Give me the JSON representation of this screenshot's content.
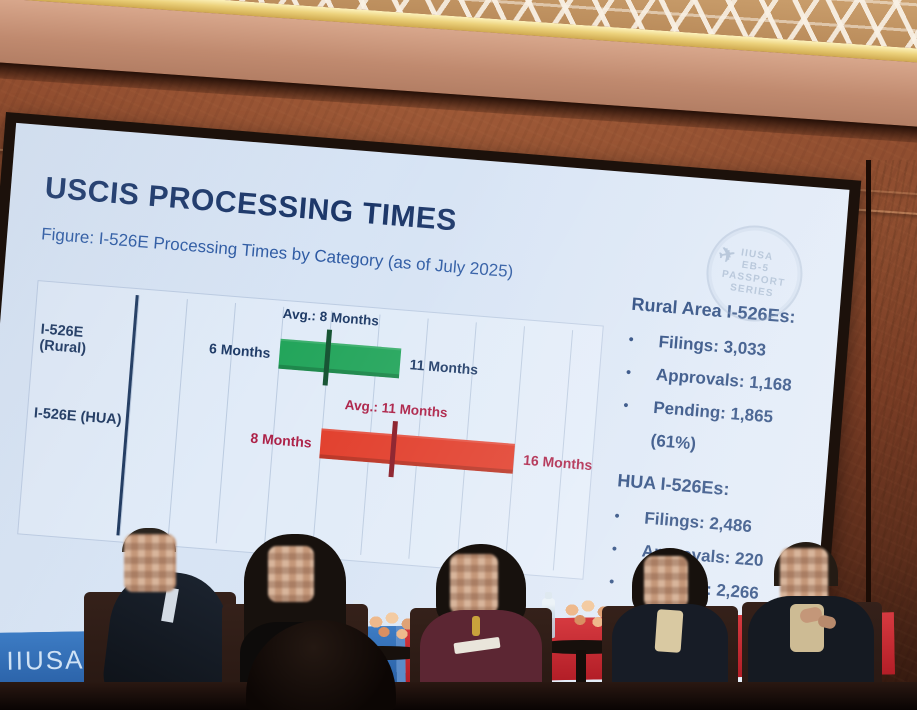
{
  "slide": {
    "title": "USCIS PROCESSING TIMES",
    "caption": "Figure: I-526E Processing Times by Category (as of July 2025)",
    "watermark": {
      "icon_glyph": "✈",
      "lines": [
        "IIUSA",
        "EB-5",
        "PASSPORT",
        "SERIES"
      ]
    },
    "stats": {
      "bullet_glyph": "•",
      "rural": {
        "heading": "Rural Area I-526Es:",
        "items": [
          "Filings: 3,033",
          "Approvals: 1,168",
          "Pending: 1,865 (61%)"
        ]
      },
      "hua": {
        "heading": "HUA I-526Es:",
        "items": [
          "Filings: 2,486",
          "Approvals: 220",
          "Pending: 2,266 (91%)"
        ]
      }
    }
  },
  "chart_data": {
    "type": "bar",
    "variant": "horizontal-range-bars",
    "title": "Figure: I-526E Processing Times by Category (as of July 2025)",
    "xlabel": "Months",
    "xlim": [
      0,
      19
    ],
    "grid": true,
    "grid_interval": 2,
    "legend": "none",
    "categories": [
      "I-526E (Rural)",
      "I-526E (HUA)"
    ],
    "rows": [
      {
        "category": "I-526E (Rural)",
        "min": 6,
        "avg": 8,
        "max": 11,
        "min_label": "6 Months",
        "avg_label": "Avg.: 8 Months",
        "max_label": "11 Months",
        "bar_color": "#23a55b",
        "tick_color": "#135130",
        "label_color": "#1e3a66"
      },
      {
        "category": "I-526E (HUA)",
        "min": 8,
        "avg": 11,
        "max": 16,
        "min_label": "8 Months",
        "avg_label": "Avg.: 11 Months",
        "max_label": "16 Months",
        "bar_color": "#e13a27",
        "tick_color": "#871722",
        "label_color": "#ab1d44"
      }
    ]
  },
  "stage": {
    "led_banner": {
      "blue_text": "IIUSA EB-",
      "fragment_letter": "n",
      "fragment_letter_small": "o",
      "blue_color": "#2f6db8",
      "red_color": "#c7262e"
    },
    "panelists_visible": 5
  },
  "colors": {
    "slide_background": "#dde8f6",
    "title_navy": "#1b3668",
    "caption_blue": "#2d5aa3",
    "stats_navy": "#1d3f78",
    "green_bar": "#23a55b",
    "red_bar": "#e13a27",
    "banner_red": "#c7262e",
    "banner_blue": "#2f6db8",
    "wall_rust": "#7c4027",
    "gold_trim": "#e6c76f"
  }
}
